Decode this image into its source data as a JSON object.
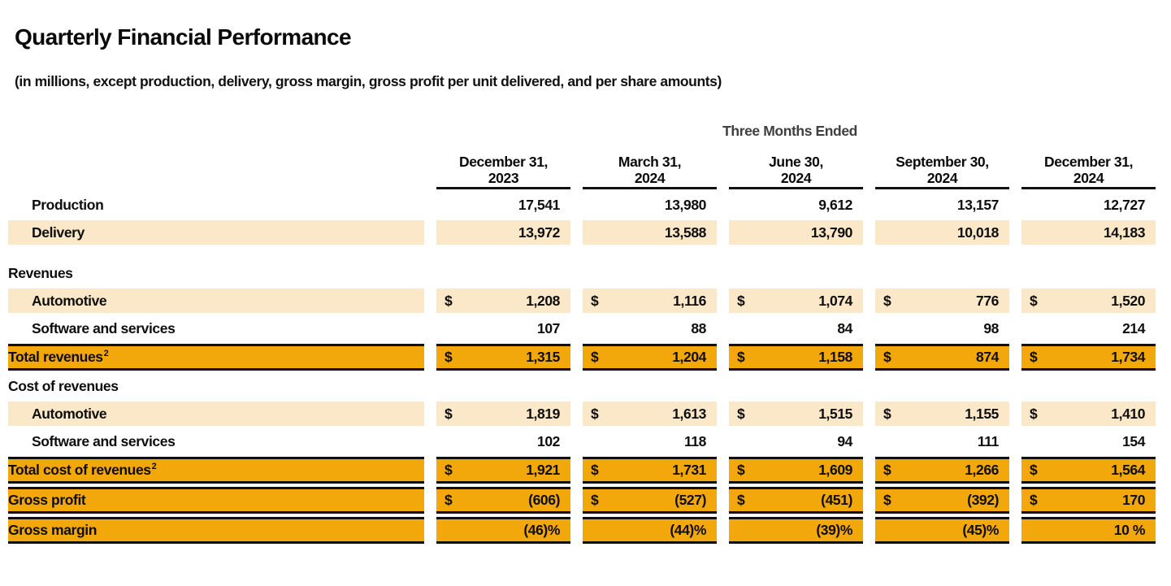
{
  "title": "Quarterly Financial Performance",
  "subtitle": "(in millions, except production, delivery, gross margin, gross profit per unit delivered, and per share amounts)",
  "colors": {
    "row_highlight_light": "#fbe8c8",
    "row_highlight_strong": "#f2a70b",
    "border_black": "#101010",
    "group_header_gray": "#3f3f3f"
  },
  "table": {
    "group_header": "Three Months Ended",
    "columns": [
      {
        "line1": "December 31,",
        "line2": "2023"
      },
      {
        "line1": "March 31,",
        "line2": "2024"
      },
      {
        "line1": "June 30,",
        "line2": "2024"
      },
      {
        "line1": "September 30,",
        "line2": "2024"
      },
      {
        "line1": "December 31,",
        "line2": "2024"
      }
    ],
    "rows": [
      {
        "type": "data",
        "label": "Production",
        "indent": true,
        "highlight": "none",
        "currency": "",
        "values": [
          "17,541",
          "13,980",
          "9,612",
          "13,157",
          "12,727"
        ]
      },
      {
        "type": "data",
        "label": "Delivery",
        "indent": true,
        "highlight": "light",
        "currency": "",
        "values": [
          "13,972",
          "13,588",
          "13,790",
          "10,018",
          "14,183"
        ]
      },
      {
        "type": "gap"
      },
      {
        "type": "section",
        "label": "Revenues"
      },
      {
        "type": "data",
        "label": "Automotive",
        "indent": true,
        "highlight": "light",
        "currency": "$",
        "values": [
          "1,208",
          "1,116",
          "1,074",
          "776",
          "1,520"
        ]
      },
      {
        "type": "data",
        "label": "Software and services",
        "indent": true,
        "highlight": "none",
        "currency": "",
        "values": [
          "107",
          "88",
          "84",
          "98",
          "214"
        ]
      },
      {
        "type": "data",
        "label": "Total revenues",
        "sup": "2",
        "highlight": "strong",
        "currency": "$",
        "values": [
          "1,315",
          "1,204",
          "1,158",
          "874",
          "1,734"
        ]
      },
      {
        "type": "section",
        "label": "Cost of revenues"
      },
      {
        "type": "data",
        "label": "Automotive",
        "indent": true,
        "highlight": "light",
        "currency": "$",
        "values": [
          "1,819",
          "1,613",
          "1,515",
          "1,155",
          "1,410"
        ]
      },
      {
        "type": "data",
        "label": "Software and services",
        "indent": true,
        "highlight": "none",
        "currency": "",
        "values": [
          "102",
          "118",
          "94",
          "111",
          "154"
        ]
      },
      {
        "type": "data",
        "label": "Total cost of revenues",
        "sup": "2",
        "highlight": "strong",
        "currency": "$",
        "values": [
          "1,921",
          "1,731",
          "1,609",
          "1,266",
          "1,564"
        ]
      },
      {
        "type": "data",
        "label": "Gross profit",
        "highlight": "strong",
        "currency": "$",
        "values": [
          "(606)",
          "(527)",
          "(451)",
          "(392)",
          "170"
        ]
      },
      {
        "type": "data",
        "label": "Gross margin",
        "highlight": "strong",
        "currency": "",
        "values": [
          "(46)%",
          "(44)%",
          "(39)%",
          "(45)%",
          "10 %"
        ]
      }
    ]
  }
}
